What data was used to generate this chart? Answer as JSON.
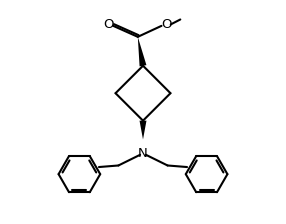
{
  "bg_color": "#ffffff",
  "line_color": "#000000",
  "line_width": 1.5,
  "font_size": 9.5,
  "figsize": [
    2.86,
    2.24
  ],
  "dpi": 100,
  "xlim": [
    -4.8,
    4.8
  ],
  "ylim": [
    -4.5,
    3.2
  ]
}
